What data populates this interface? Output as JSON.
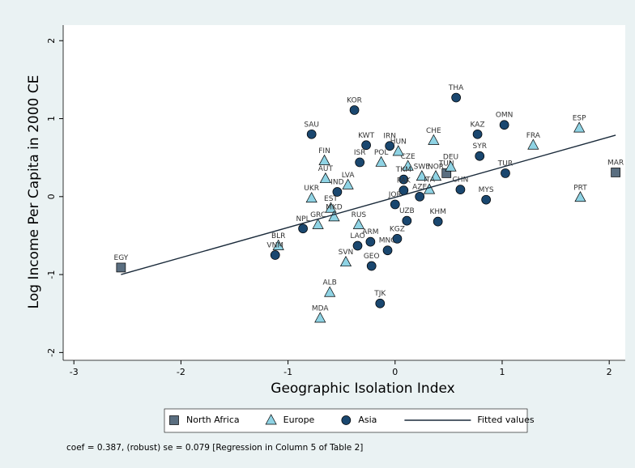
{
  "chart_data": {
    "type": "scatter",
    "x_label": "Geographic Isolation Index",
    "y_label": "Log Income Per Capita in 2000 CE",
    "note": "coef = 0.387, (robust) se = 0.079 [Regression in Column 5 of Table 2]",
    "xlim": [
      -3.1,
      2.15
    ],
    "ylim": [
      -2.1,
      2.2
    ],
    "xticks": [
      -3,
      -2,
      -1,
      0,
      1,
      2
    ],
    "yticks": [
      -2,
      -1,
      0,
      1,
      2
    ],
    "series": [
      {
        "name": "North Africa",
        "marker": "square",
        "color": "#5a6e80",
        "labels": [
          "EGY",
          "MAR",
          "TUN"
        ],
        "x": [
          -2.56,
          2.06,
          0.48
        ],
        "values": [
          -0.91,
          0.31,
          0.3
        ]
      },
      {
        "name": "Europe",
        "marker": "triangle",
        "color": "#8fd3e4",
        "labels": [
          "ESP",
          "FRA",
          "PRT",
          "FIN",
          "POL",
          "CZE",
          "HUN",
          "CHE",
          "DEU",
          "SWE",
          "NOR",
          "AUT",
          "LVA",
          "UKR",
          "EST",
          "MKD",
          "GRC",
          "RUS",
          "BLR",
          "SVN",
          "ALB",
          "MDA",
          "ITA"
        ],
        "x": [
          1.72,
          1.29,
          1.73,
          -0.66,
          -0.13,
          0.12,
          0.03,
          0.36,
          0.52,
          0.25,
          0.38,
          -0.65,
          -0.44,
          -0.78,
          -0.6,
          -0.57,
          -0.72,
          -0.34,
          -1.09,
          -0.46,
          -0.61,
          -0.7,
          0.32
        ],
        "values": [
          0.88,
          0.66,
          -0.01,
          0.46,
          0.44,
          0.39,
          0.58,
          0.72,
          0.38,
          0.26,
          0.26,
          0.23,
          0.15,
          -0.02,
          -0.15,
          -0.26,
          -0.36,
          -0.36,
          -0.63,
          -0.84,
          -1.23,
          -1.56,
          0.09
        ]
      },
      {
        "name": "Asia",
        "marker": "circle",
        "color": "#1a476f",
        "labels": [
          "KOR",
          "THA",
          "OMN",
          "KAZ",
          "SAU",
          "KWT",
          "IRN",
          "SYR",
          "ISR",
          "TUR",
          "TKM",
          "CHN",
          "MYS",
          "PAK",
          "AZE",
          "JOR",
          "IND",
          "MNG",
          "KGZ",
          "UZB",
          "KHM",
          "ARM",
          "LAO",
          "NPL",
          "VNM",
          "GEO",
          "TJK"
        ],
        "x": [
          -0.38,
          0.57,
          1.02,
          0.77,
          -0.78,
          -0.27,
          -0.05,
          0.79,
          -0.33,
          1.03,
          0.08,
          0.61,
          0.85,
          0.08,
          0.23,
          0.0,
          -0.54,
          -0.07,
          0.02,
          0.11,
          0.4,
          -0.23,
          -0.35,
          -0.86,
          -1.12,
          -0.22,
          -0.14
        ],
        "values": [
          1.11,
          1.27,
          0.92,
          0.8,
          0.8,
          0.66,
          0.65,
          0.52,
          0.44,
          0.3,
          0.22,
          0.09,
          -0.04,
          0.08,
          0.0,
          -0.1,
          0.06,
          -0.69,
          -0.54,
          -0.31,
          -0.32,
          -0.58,
          -0.63,
          -0.41,
          -0.75,
          -0.89,
          -1.37
        ]
      },
      {
        "name": "Fitted values",
        "type": "line",
        "color": "#1a2a3a",
        "x": [
          -2.56,
          2.06
        ],
        "values": [
          -1.0,
          0.788
        ]
      }
    ]
  }
}
